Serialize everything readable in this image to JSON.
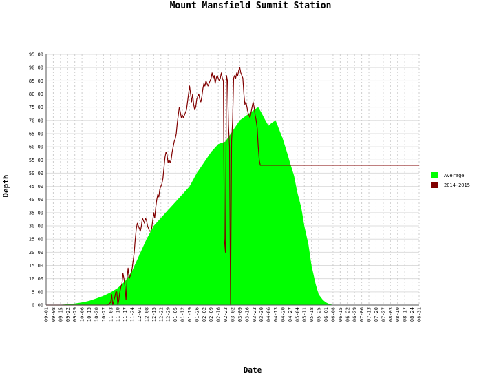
{
  "chart_data": {
    "type": "area",
    "title": "Mount Mansfield Summit Station",
    "xlabel": "Date",
    "ylabel": "Depth",
    "ylim": [
      0,
      95
    ],
    "y_tick_step": 5,
    "y_tick_labels": [
      "0.00",
      "5.00",
      "10.00",
      "15.00",
      "20.00",
      "25.00",
      "30.00",
      "35.00",
      "40.00",
      "45.00",
      "50.00",
      "55.00",
      "60.00",
      "65.00",
      "70.00",
      "75.00",
      "80.00",
      "85.00",
      "90.00",
      "95.00"
    ],
    "x_tick_labels": [
      "09-01",
      "09-08",
      "09-15",
      "09-22",
      "09-29",
      "10-06",
      "10-13",
      "10-20",
      "10-27",
      "11-03",
      "11-10",
      "11-17",
      "11-24",
      "12-01",
      "12-08",
      "12-15",
      "12-22",
      "12-29",
      "01-05",
      "01-12",
      "01-19",
      "01-26",
      "02-02",
      "02-09",
      "02-16",
      "02-23",
      "03-02",
      "03-09",
      "03-16",
      "03-23",
      "03-30",
      "04-06",
      "04-13",
      "04-20",
      "04-27",
      "05-04",
      "05-11",
      "05-18",
      "05-25",
      "06-01",
      "06-08",
      "06-15",
      "06-22",
      "06-29",
      "07-06",
      "07-13",
      "07-20",
      "07-27",
      "08-03",
      "08-10",
      "08-17",
      "08-24",
      "08-31"
    ],
    "grid": true,
    "legend_position": "right",
    "series": [
      {
        "name": "Average",
        "color": "#00ff00",
        "style": "area",
        "points": [
          [
            0,
            0
          ],
          [
            14,
            0.1
          ],
          [
            21,
            0.3
          ],
          [
            28,
            0.6
          ],
          [
            35,
            1.0
          ],
          [
            42,
            1.6
          ],
          [
            49,
            2.5
          ],
          [
            56,
            3.5
          ],
          [
            63,
            4.8
          ],
          [
            70,
            6.5
          ],
          [
            77,
            9
          ],
          [
            84,
            13
          ],
          [
            91,
            19
          ],
          [
            98,
            25
          ],
          [
            105,
            30
          ],
          [
            112,
            33
          ],
          [
            119,
            36
          ],
          [
            126,
            39
          ],
          [
            133,
            42
          ],
          [
            140,
            45
          ],
          [
            147,
            50
          ],
          [
            154,
            54
          ],
          [
            161,
            58
          ],
          [
            168,
            61
          ],
          [
            175,
            62
          ],
          [
            182,
            66
          ],
          [
            189,
            70
          ],
          [
            196,
            72
          ],
          [
            203,
            74
          ],
          [
            207,
            75
          ],
          [
            210,
            73
          ],
          [
            214,
            70
          ],
          [
            217,
            68
          ],
          [
            220,
            69
          ],
          [
            224,
            70
          ],
          [
            228,
            66
          ],
          [
            231,
            63
          ],
          [
            235,
            58
          ],
          [
            238,
            54
          ],
          [
            242,
            49
          ],
          [
            245,
            43
          ],
          [
            249,
            37
          ],
          [
            252,
            30
          ],
          [
            256,
            23
          ],
          [
            259,
            15
          ],
          [
            263,
            8
          ],
          [
            266,
            4
          ],
          [
            270,
            2
          ],
          [
            273,
            1
          ],
          [
            277,
            0.3
          ],
          [
            280,
            0.1
          ],
          [
            287,
            0
          ],
          [
            364,
            0
          ]
        ]
      },
      {
        "name": "2014-2015",
        "color": "#800000",
        "style": "line",
        "points": [
          [
            0,
            0
          ],
          [
            60,
            0
          ],
          [
            63,
            1
          ],
          [
            64,
            4
          ],
          [
            65,
            0
          ],
          [
            67,
            3
          ],
          [
            68,
            5
          ],
          [
            69,
            5
          ],
          [
            70,
            0
          ],
          [
            71,
            2
          ],
          [
            72,
            5
          ],
          [
            73,
            7
          ],
          [
            74,
            8
          ],
          [
            75,
            12
          ],
          [
            76,
            10
          ],
          [
            77,
            7
          ],
          [
            78,
            2
          ],
          [
            79,
            10
          ],
          [
            80,
            14
          ],
          [
            81,
            10
          ],
          [
            82,
            11
          ],
          [
            83,
            12
          ],
          [
            84,
            14
          ],
          [
            85,
            17
          ],
          [
            86,
            20
          ],
          [
            87,
            25
          ],
          [
            88,
            29
          ],
          [
            89,
            31
          ],
          [
            90,
            30
          ],
          [
            91,
            29
          ],
          [
            92,
            28
          ],
          [
            93,
            30
          ],
          [
            94,
            33
          ],
          [
            95,
            32
          ],
          [
            96,
            31
          ],
          [
            97,
            33
          ],
          [
            98,
            32
          ],
          [
            99,
            30
          ],
          [
            100,
            29
          ],
          [
            101,
            28
          ],
          [
            102,
            28
          ],
          [
            103,
            29
          ],
          [
            104,
            32
          ],
          [
            105,
            35
          ],
          [
            106,
            33
          ],
          [
            107,
            37
          ],
          [
            108,
            40
          ],
          [
            109,
            42
          ],
          [
            110,
            41
          ],
          [
            111,
            44
          ],
          [
            112,
            45
          ],
          [
            113,
            46
          ],
          [
            114,
            48
          ],
          [
            115,
            52
          ],
          [
            116,
            56
          ],
          [
            117,
            58
          ],
          [
            118,
            57
          ],
          [
            119,
            54
          ],
          [
            120,
            55
          ],
          [
            121,
            54
          ],
          [
            122,
            55
          ],
          [
            123,
            58
          ],
          [
            124,
            60
          ],
          [
            125,
            62
          ],
          [
            126,
            63
          ],
          [
            127,
            65
          ],
          [
            128,
            69
          ],
          [
            129,
            72
          ],
          [
            130,
            75
          ],
          [
            131,
            73
          ],
          [
            132,
            71
          ],
          [
            133,
            72
          ],
          [
            134,
            71
          ],
          [
            135,
            72
          ],
          [
            136,
            73
          ],
          [
            137,
            74
          ],
          [
            138,
            77
          ],
          [
            139,
            80
          ],
          [
            140,
            83
          ],
          [
            141,
            80
          ],
          [
            142,
            77
          ],
          [
            143,
            80
          ],
          [
            144,
            76
          ],
          [
            145,
            74
          ],
          [
            146,
            75
          ],
          [
            147,
            78
          ],
          [
            148,
            79
          ],
          [
            149,
            80
          ],
          [
            150,
            78
          ],
          [
            151,
            77
          ],
          [
            152,
            79
          ],
          [
            153,
            82
          ],
          [
            154,
            84
          ],
          [
            155,
            83
          ],
          [
            156,
            85
          ],
          [
            157,
            84
          ],
          [
            158,
            83
          ],
          [
            159,
            84
          ],
          [
            160,
            85
          ],
          [
            161,
            86
          ],
          [
            162,
            88
          ],
          [
            163,
            86
          ],
          [
            164,
            87
          ],
          [
            165,
            84
          ],
          [
            166,
            86
          ],
          [
            167,
            87
          ],
          [
            168,
            86
          ],
          [
            169,
            85
          ],
          [
            170,
            86
          ],
          [
            171,
            88
          ],
          [
            172,
            86
          ],
          [
            173,
            85
          ],
          [
            174,
            25
          ],
          [
            175,
            20
          ],
          [
            176,
            87
          ],
          [
            177,
            85
          ],
          [
            178,
            68
          ],
          [
            179,
            60
          ],
          [
            180,
            0
          ],
          [
            181,
            62
          ],
          [
            182,
            70
          ],
          [
            183,
            86
          ],
          [
            184,
            87
          ],
          [
            185,
            86
          ],
          [
            186,
            88
          ],
          [
            187,
            87
          ],
          [
            188,
            89
          ],
          [
            189,
            90
          ],
          [
            190,
            88
          ],
          [
            191,
            87
          ],
          [
            192,
            86
          ],
          [
            193,
            80
          ],
          [
            194,
            76
          ],
          [
            195,
            77
          ],
          [
            196,
            75
          ],
          [
            197,
            73
          ],
          [
            198,
            72
          ],
          [
            199,
            71
          ],
          [
            200,
            73
          ],
          [
            201,
            75
          ],
          [
            202,
            77
          ],
          [
            203,
            75
          ],
          [
            204,
            72
          ],
          [
            205,
            70
          ],
          [
            206,
            67
          ],
          [
            207,
            60
          ],
          [
            208,
            55
          ],
          [
            209,
            53
          ],
          [
            364,
            53
          ]
        ]
      }
    ]
  }
}
